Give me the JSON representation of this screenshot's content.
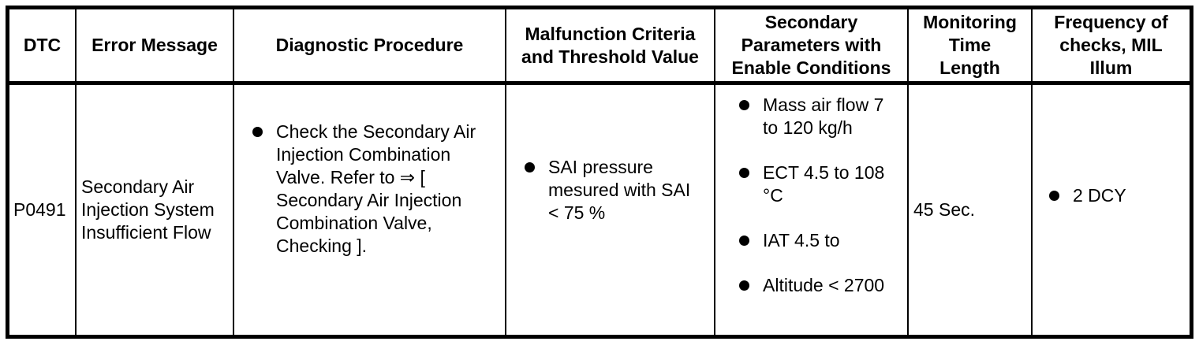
{
  "table": {
    "headers": [
      "DTC",
      "Error Message",
      "Diagnostic Procedure",
      "Malfunction Criteria\nand Threshold Value",
      "Secondary\nParameters with\nEnable Conditions",
      "Monitoring\nTime\nLength",
      "Frequency of\nchecks, MIL\nIllum"
    ],
    "row": {
      "dtc": "P0491",
      "error_message": "Secondary Air\nInjection System\nInsufficient Flow",
      "diagnostic_procedure": [
        "Check the Secondary Air\nInjection Combination\nValve. Refer to ⇒ [\nSecondary Air Injection\nCombination Valve,\nChecking ]."
      ],
      "malfunction_criteria": [
        "SAI pressure\nmesured with SAI\n< 75 %"
      ],
      "secondary_parameters": [
        "Mass air flow 7\nto 120 kg/h",
        "ECT 4.5 to 108\n°C",
        "IAT 4.5 to",
        "Altitude < 2700"
      ],
      "monitoring_time_length": "45 Sec.",
      "frequency_of_checks": [
        "2 DCY"
      ]
    },
    "colors": {
      "border": "#000000",
      "text": "#000000",
      "background": "#ffffff"
    }
  }
}
